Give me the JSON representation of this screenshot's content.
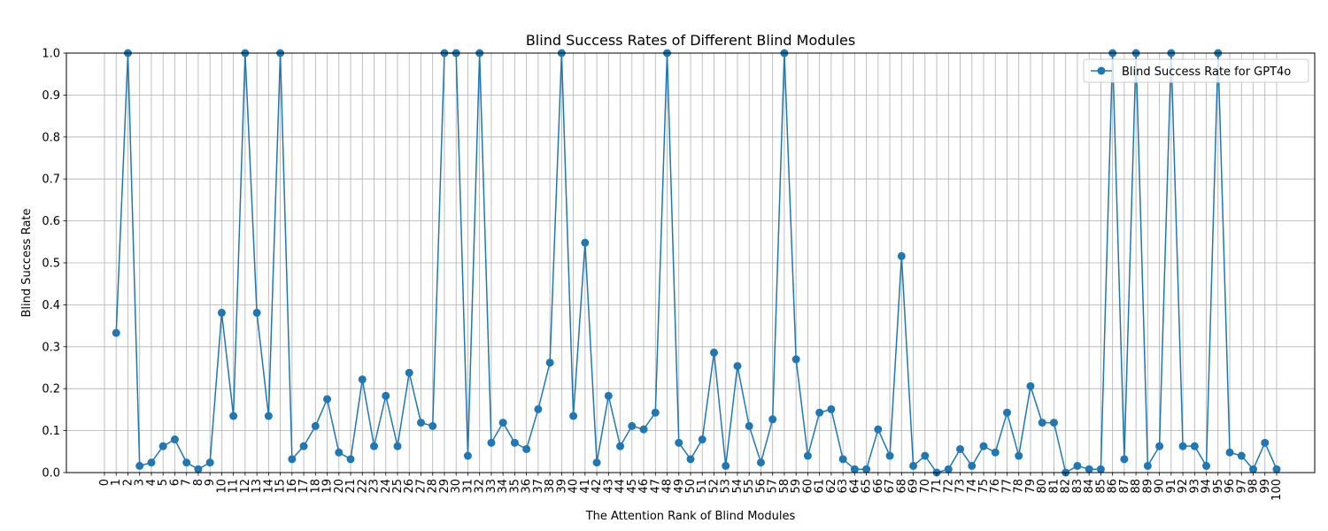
{
  "chart_data": {
    "type": "line",
    "title": "Blind Success Rates of Different Blind Modules",
    "xlabel": "The Attention Rank of Blind Modules",
    "ylabel": "Blind Success Rate",
    "xlim": [
      0,
      100
    ],
    "ylim": [
      0,
      1.0
    ],
    "xticks": [
      "0",
      "1",
      "2",
      "3",
      "4",
      "5",
      "6",
      "7",
      "8",
      "9",
      "10",
      "11",
      "12",
      "13",
      "14",
      "15",
      "16",
      "17",
      "18",
      "19",
      "20",
      "21",
      "22",
      "23",
      "24",
      "25",
      "26",
      "27",
      "28",
      "29",
      "30",
      "31",
      "32",
      "33",
      "34",
      "35",
      "36",
      "37",
      "38",
      "39",
      "40",
      "41",
      "42",
      "43",
      "44",
      "45",
      "46",
      "47",
      "48",
      "49",
      "50",
      "51",
      "52",
      "53",
      "54",
      "55",
      "56",
      "57",
      "58",
      "59",
      "60",
      "61",
      "62",
      "63",
      "64",
      "65",
      "66",
      "67",
      "68",
      "69",
      "70",
      "71",
      "72",
      "73",
      "74",
      "75",
      "76",
      "77",
      "78",
      "79",
      "80",
      "81",
      "82",
      "83",
      "84",
      "85",
      "86",
      "87",
      "88",
      "89",
      "90",
      "91",
      "92",
      "93",
      "94",
      "95",
      "96",
      "97",
      "98",
      "99",
      "100"
    ],
    "yticks": [
      "0.0",
      "0.1",
      "0.2",
      "0.3",
      "0.4",
      "0.5",
      "0.6",
      "0.7",
      "0.8",
      "0.9",
      "1.0"
    ],
    "grid": true,
    "legend_position": "top-right",
    "series": [
      {
        "name": "Blind Success Rate for GPT4o",
        "color": "#1f77b4",
        "x": [
          1,
          2,
          3,
          4,
          5,
          6,
          7,
          8,
          9,
          10,
          11,
          12,
          13,
          14,
          15,
          16,
          17,
          18,
          19,
          20,
          21,
          22,
          23,
          24,
          25,
          26,
          27,
          28,
          29,
          30,
          31,
          32,
          33,
          34,
          35,
          36,
          37,
          38,
          39,
          40,
          41,
          42,
          43,
          44,
          45,
          46,
          47,
          48,
          49,
          50,
          51,
          52,
          53,
          54,
          55,
          56,
          57,
          58,
          59,
          60,
          61,
          62,
          63,
          64,
          65,
          66,
          67,
          68,
          69,
          70,
          71,
          72,
          73,
          74,
          75,
          76,
          77,
          78,
          79,
          80,
          81,
          82,
          83,
          84,
          85,
          86,
          87,
          88,
          89,
          90,
          91,
          92,
          93,
          94,
          95,
          96,
          97,
          98,
          99,
          100
        ],
        "values": [
          0.333,
          1.0,
          0.016,
          0.024,
          0.063,
          0.079,
          0.024,
          0.008,
          0.024,
          0.381,
          0.135,
          1.0,
          0.381,
          0.135,
          1.0,
          0.032,
          0.063,
          0.111,
          0.175,
          0.048,
          0.032,
          0.222,
          0.063,
          0.183,
          0.063,
          0.238,
          0.119,
          0.111,
          1.0,
          1.0,
          0.04,
          1.0,
          0.071,
          0.119,
          0.071,
          0.056,
          0.151,
          0.262,
          1.0,
          0.135,
          0.548,
          0.024,
          0.183,
          0.063,
          0.111,
          0.103,
          0.143,
          1.0,
          0.071,
          0.032,
          0.079,
          0.286,
          0.016,
          0.254,
          0.111,
          0.024,
          0.127,
          1.0,
          0.27,
          0.04,
          0.143,
          0.151,
          0.032,
          0.008,
          0.008,
          0.103,
          0.04,
          0.516,
          0.016,
          0.04,
          0.0,
          0.008,
          0.056,
          0.016,
          0.063,
          0.048,
          0.143,
          0.04,
          0.206,
          0.119,
          0.119,
          0.0,
          0.016,
          0.008,
          0.008,
          1.0,
          0.032,
          1.0,
          0.016,
          0.063,
          1.0,
          0.063,
          0.063,
          0.016,
          1.0,
          0.048,
          0.04,
          0.008,
          0.071,
          0.008
        ]
      }
    ]
  }
}
